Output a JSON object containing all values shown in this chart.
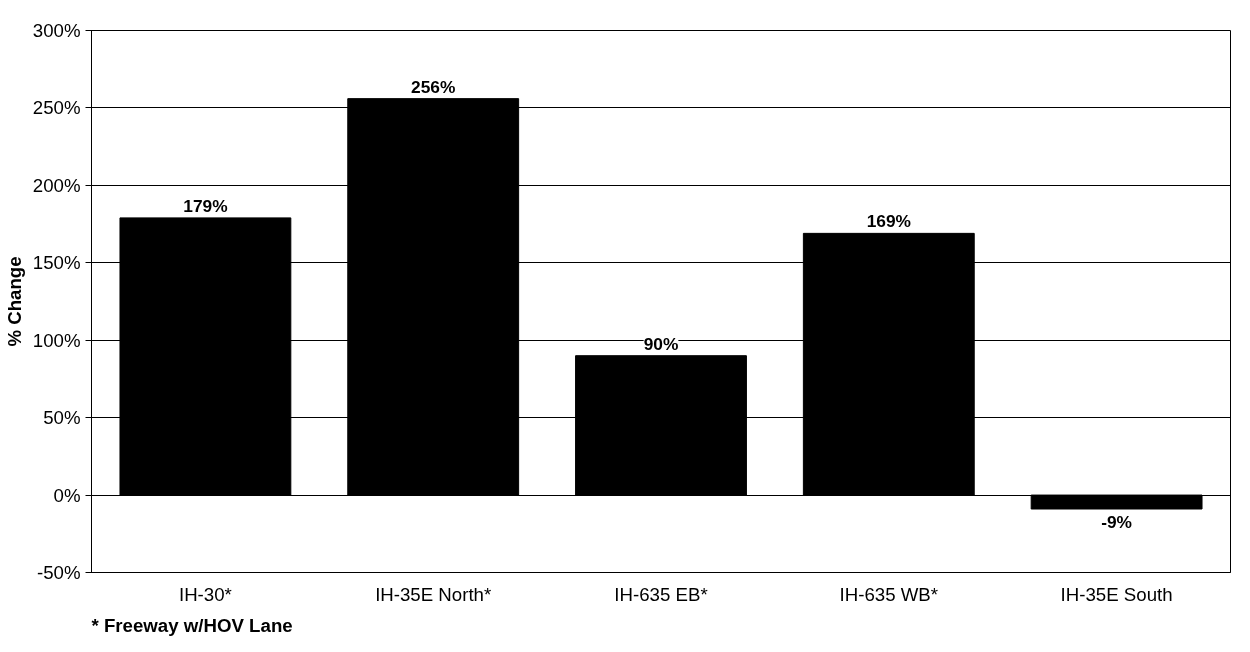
{
  "chart_data": {
    "type": "bar",
    "ylabel": "% Change",
    "categories": [
      "IH-30*",
      "IH-35E North*",
      "IH-635 EB*",
      "IH-635 WB*",
      "IH-35E South"
    ],
    "values": [
      179,
      256,
      90,
      169,
      -9
    ],
    "value_labels": [
      "179%",
      "256%",
      "90%",
      "169%",
      "-9%"
    ],
    "color": "#000000",
    "ylim": [
      -50,
      300
    ],
    "yticks": [
      {
        "value": -50,
        "label": "-50%"
      },
      {
        "value": 0,
        "label": "0%"
      },
      {
        "value": 50,
        "label": "50%"
      },
      {
        "value": 100,
        "label": "100%"
      },
      {
        "value": 150,
        "label": "150%"
      },
      {
        "value": 200,
        "label": "200%"
      },
      {
        "value": 250,
        "label": "250%"
      },
      {
        "value": 300,
        "label": "300%"
      }
    ],
    "grid": "y",
    "annotations": [
      "* Freeway w/HOV Lane"
    ]
  }
}
